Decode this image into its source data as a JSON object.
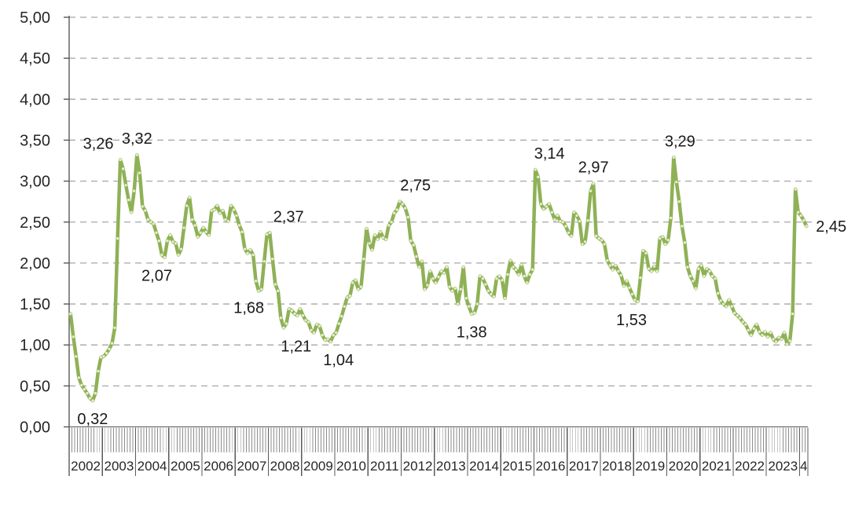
{
  "chart_data": {
    "type": "line",
    "title": "",
    "frequency": "monthly",
    "start_month": "2002-01",
    "end_month": "2024-03",
    "ylim": [
      0,
      5
    ],
    "ytick_step": 0.5,
    "ytick_labels_top_down": [
      "5,00",
      "4,50",
      "4,00",
      "3,50",
      "3,00",
      "2,50",
      "2,00",
      "1,50",
      "1,00",
      "0,50",
      "0,00"
    ],
    "x_segment_labels": [
      "2002",
      "2003",
      "2004",
      "2005",
      "2006",
      "2007",
      "2008",
      "2009",
      "2010",
      "2011",
      "2012",
      "2013",
      "2014",
      "2015",
      "2016",
      "2017",
      "2018",
      "2019",
      "2020",
      "2021",
      "2022",
      "2023",
      "4"
    ],
    "grid": "horizontal-dashed",
    "legend": "none",
    "decimal_separator": ",",
    "series": [
      {
        "name": "monthly-value",
        "values": [
          1.38,
          1.1,
          0.86,
          0.6,
          0.51,
          0.46,
          0.41,
          0.35,
          0.32,
          0.41,
          0.68,
          0.85,
          0.86,
          0.9,
          0.95,
          1.02,
          1.21,
          2.3,
          3.26,
          3.15,
          2.95,
          2.77,
          2.62,
          2.88,
          3.32,
          3.1,
          2.69,
          2.64,
          2.53,
          2.5,
          2.48,
          2.37,
          2.27,
          2.1,
          2.07,
          2.27,
          2.34,
          2.26,
          2.24,
          2.1,
          2.17,
          2.43,
          2.7,
          2.8,
          2.53,
          2.46,
          2.32,
          2.37,
          2.43,
          2.38,
          2.34,
          2.64,
          2.65,
          2.7,
          2.61,
          2.64,
          2.53,
          2.51,
          2.7,
          2.65,
          2.58,
          2.46,
          2.38,
          2.17,
          2.12,
          2.16,
          2.1,
          1.78,
          1.66,
          1.68,
          2.02,
          2.35,
          2.37,
          2.05,
          1.74,
          1.66,
          1.33,
          1.21,
          1.26,
          1.44,
          1.42,
          1.38,
          1.36,
          1.44,
          1.36,
          1.3,
          1.28,
          1.18,
          1.15,
          1.25,
          1.23,
          1.12,
          1.06,
          1.07,
          1.04,
          1.12,
          1.15,
          1.26,
          1.35,
          1.47,
          1.58,
          1.6,
          1.76,
          1.79,
          1.68,
          1.71,
          2.05,
          2.42,
          2.24,
          2.16,
          2.34,
          2.29,
          2.38,
          2.31,
          2.29,
          2.46,
          2.5,
          2.61,
          2.65,
          2.75,
          2.72,
          2.67,
          2.56,
          2.27,
          2.22,
          2.08,
          1.95,
          2.02,
          1.68,
          1.73,
          1.9,
          1.81,
          1.76,
          1.83,
          1.9,
          1.88,
          1.95,
          1.71,
          1.66,
          1.69,
          1.5,
          1.68,
          1.95,
          1.57,
          1.47,
          1.38,
          1.39,
          1.5,
          1.84,
          1.81,
          1.74,
          1.66,
          1.62,
          1.59,
          1.81,
          1.84,
          1.79,
          1.57,
          1.86,
          2.03,
          1.95,
          1.92,
          1.86,
          1.98,
          1.84,
          1.76,
          1.86,
          1.92,
          3.14,
          3.05,
          2.72,
          2.66,
          2.69,
          2.72,
          2.62,
          2.53,
          2.58,
          2.51,
          2.5,
          2.45,
          2.37,
          2.33,
          2.62,
          2.58,
          2.51,
          2.23,
          2.26,
          2.52,
          2.88,
          2.97,
          2.33,
          2.3,
          2.28,
          2.23,
          2.03,
          1.97,
          1.92,
          1.97,
          1.9,
          1.85,
          1.72,
          1.78,
          1.7,
          1.62,
          1.55,
          1.53,
          1.82,
          2.15,
          2.12,
          1.93,
          1.9,
          1.96,
          1.9,
          2.3,
          2.32,
          2.23,
          2.28,
          2.55,
          3.29,
          2.99,
          2.75,
          2.45,
          2.25,
          1.95,
          1.84,
          1.78,
          1.69,
          1.93,
          1.97,
          1.84,
          1.93,
          1.9,
          1.84,
          1.81,
          1.63,
          1.54,
          1.5,
          1.47,
          1.55,
          1.47,
          1.39,
          1.36,
          1.33,
          1.28,
          1.25,
          1.18,
          1.12,
          1.2,
          1.25,
          1.16,
          1.12,
          1.16,
          1.1,
          1.15,
          1.07,
          1.04,
          1.09,
          1.07,
          1.15,
          1.01,
          1.05,
          1.38,
          2.9,
          2.62,
          2.58,
          2.52,
          2.45
        ]
      }
    ],
    "annotations": [
      {
        "label": "0,32",
        "month": "2002-09",
        "placement": "below"
      },
      {
        "label": "3,26",
        "month": "2003-07",
        "placement": "above"
      },
      {
        "label": "3,32",
        "month": "2004-01",
        "placement": "above"
      },
      {
        "label": "2,07",
        "month": "2004-11",
        "placement": "below"
      },
      {
        "label": "1,68",
        "month": "2007-10",
        "placement": "below"
      },
      {
        "label": "2,37",
        "month": "2008-01",
        "placement": "above"
      },
      {
        "label": "1,21",
        "month": "2008-06",
        "placement": "below"
      },
      {
        "label": "1,04",
        "month": "2009-11",
        "placement": "below"
      },
      {
        "label": "2,75",
        "month": "2011-12",
        "placement": "above"
      },
      {
        "label": "1,38",
        "month": "2014-02",
        "placement": "below"
      },
      {
        "label": "3,14",
        "month": "2016-01",
        "placement": "above"
      },
      {
        "label": "2,97",
        "month": "2017-10",
        "placement": "above"
      },
      {
        "label": "1,53",
        "month": "2019-02",
        "placement": "below"
      },
      {
        "label": "3,29",
        "month": "2020-03",
        "placement": "above"
      },
      {
        "label": "2,45",
        "month": "2024-03",
        "placement": "right"
      }
    ],
    "colors": {
      "line": "#8FB156",
      "marker_fill": "#E4EECC",
      "gridline": "#A6A6A6",
      "axis": "#595959",
      "minor_tick": "#8C8C8C",
      "text": "#262626"
    }
  }
}
